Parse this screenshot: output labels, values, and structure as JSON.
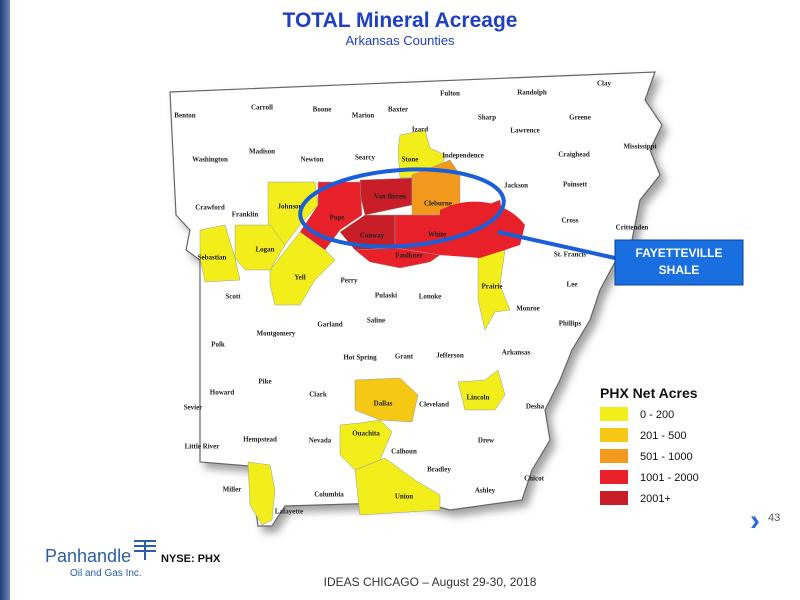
{
  "header": {
    "title": "TOTAL Mineral Acreage",
    "subtitle": "Arkansas Counties"
  },
  "counties": [
    {
      "name": "Benton"
    },
    {
      "name": "Carroll"
    },
    {
      "name": "Boone"
    },
    {
      "name": "Marion"
    },
    {
      "name": "Baxter"
    },
    {
      "name": "Fulton"
    },
    {
      "name": "Randolph"
    },
    {
      "name": "Clay"
    },
    {
      "name": "Izard"
    },
    {
      "name": "Sharp"
    },
    {
      "name": "Lawrence"
    },
    {
      "name": "Greene"
    },
    {
      "name": "Washington"
    },
    {
      "name": "Madison"
    },
    {
      "name": "Newton"
    },
    {
      "name": "Searcy"
    },
    {
      "name": "Stone",
      "color": "#f2ee1c"
    },
    {
      "name": "Independence"
    },
    {
      "name": "Craighead"
    },
    {
      "name": "Mississippi"
    },
    {
      "name": "Jackson"
    },
    {
      "name": "Poinsett"
    },
    {
      "name": "Crawford"
    },
    {
      "name": "Franklin"
    },
    {
      "name": "Johnson",
      "color": "#f2ee1c"
    },
    {
      "name": "Van Buren",
      "color": "#c81e27"
    },
    {
      "name": "Cleburne",
      "color": "#f39a1e"
    },
    {
      "name": "Pope",
      "color": "#e8202a"
    },
    {
      "name": "Conway",
      "color": "#c81e27"
    },
    {
      "name": "White",
      "color": "#e8202a"
    },
    {
      "name": "Faulkner",
      "color": "#e8202a"
    },
    {
      "name": "Cross"
    },
    {
      "name": "Crittenden"
    },
    {
      "name": "St. Francis"
    },
    {
      "name": "Sebastian",
      "color": "#f2ee1c"
    },
    {
      "name": "Logan",
      "color": "#f2ee1c"
    },
    {
      "name": "Yell",
      "color": "#f2ee1c"
    },
    {
      "name": "Perry"
    },
    {
      "name": "Prairie",
      "color": "#f2ee1c"
    },
    {
      "name": "Lee"
    },
    {
      "name": "Scott"
    },
    {
      "name": "Pulaski"
    },
    {
      "name": "Lonoke"
    },
    {
      "name": "Monroe"
    },
    {
      "name": "Phillips"
    },
    {
      "name": "Garland"
    },
    {
      "name": "Saline"
    },
    {
      "name": "Montgomery"
    },
    {
      "name": "Polk"
    },
    {
      "name": "Hot Spring"
    },
    {
      "name": "Grant"
    },
    {
      "name": "Jefferson"
    },
    {
      "name": "Arkansas"
    },
    {
      "name": "Pike"
    },
    {
      "name": "Howard"
    },
    {
      "name": "Clark"
    },
    {
      "name": "Dallas",
      "color": "#f5c815"
    },
    {
      "name": "Cleveland"
    },
    {
      "name": "Lincoln",
      "color": "#f2ee1c"
    },
    {
      "name": "Sevier"
    },
    {
      "name": "Desha"
    },
    {
      "name": "Hempstead"
    },
    {
      "name": "Nevada"
    },
    {
      "name": "Ouachita",
      "color": "#f2ee1c"
    },
    {
      "name": "Calhoun"
    },
    {
      "name": "Drew"
    },
    {
      "name": "Little River"
    },
    {
      "name": "Bradley"
    },
    {
      "name": "Chicot"
    },
    {
      "name": "Miller",
      "color": "#f2ee1c"
    },
    {
      "name": "Columbia"
    },
    {
      "name": "Union",
      "color": "#f2ee1c"
    },
    {
      "name": "Ashley"
    },
    {
      "name": "Lafayette"
    }
  ],
  "callout": {
    "lines": [
      "FAYETTEVILLE",
      "SHALE"
    ]
  },
  "legend": {
    "title": "PHX Net Acres",
    "items": [
      {
        "label": "0 - 200",
        "color": "#f2ee1c"
      },
      {
        "label": "201 - 500",
        "color": "#f5c815"
      },
      {
        "label": "501 - 1000",
        "color": "#f39a1e"
      },
      {
        "label": "1001 - 2000",
        "color": "#e8202a"
      },
      {
        "label": "2001+",
        "color": "#c81e27"
      }
    ]
  },
  "page_number": "43",
  "logo": {
    "name": "Panhandle",
    "sub": "Oil and Gas Inc.",
    "ticker": "NYSE: PHX"
  },
  "footer": "IDEAS CHICAGO – August 29-30, 2018"
}
